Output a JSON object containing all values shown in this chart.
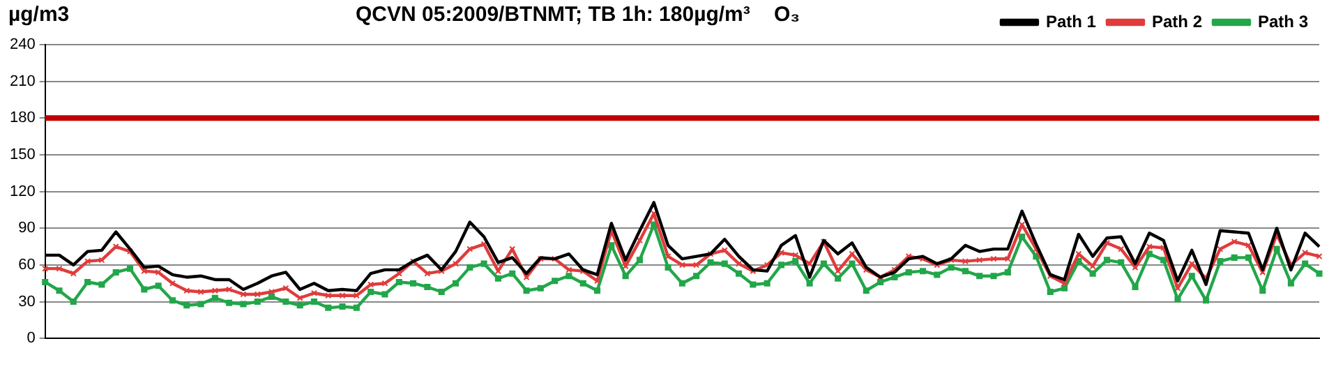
{
  "chart_data": {
    "type": "line",
    "title": "QCVN 05:2009/BTNMT; TB 1h: 180µg/m³",
    "ylabel": "µg/m3",
    "annotations": [
      "O₃"
    ],
    "categories": [
      null,
      null,
      null,
      null,
      null,
      null,
      null,
      null,
      null,
      null,
      null,
      null,
      null,
      null,
      null,
      null,
      null,
      null,
      null,
      null,
      null,
      null,
      null,
      null,
      null,
      null,
      null,
      null,
      null,
      null,
      null,
      null,
      null,
      null,
      null,
      null,
      null,
      null,
      null,
      null,
      null,
      null,
      null,
      null,
      null,
      null,
      null,
      null,
      null,
      null,
      null,
      null,
      null,
      null,
      null,
      null,
      null,
      null,
      null,
      null,
      null,
      null,
      null,
      null,
      null,
      null,
      null,
      null,
      null,
      null,
      null,
      null,
      null,
      null,
      null,
      null,
      null,
      null,
      null,
      null,
      null,
      null,
      null,
      null,
      null,
      null,
      null,
      null,
      null,
      null,
      null
    ],
    "series": [
      {
        "name": "Path 1",
        "color": "#000000",
        "marker": "none",
        "values": [
          68,
          68,
          60,
          71,
          72,
          87,
          73,
          58,
          59,
          52,
          50,
          51,
          48,
          48,
          40,
          45,
          51,
          54,
          40,
          45,
          39,
          40,
          39,
          53,
          56,
          56,
          63,
          68,
          56,
          71,
          95,
          83,
          62,
          66,
          53,
          66,
          65,
          69,
          56,
          52,
          94,
          64,
          88,
          111,
          76,
          65,
          67,
          69,
          81,
          67,
          56,
          55,
          76,
          84,
          50,
          80,
          69,
          78,
          58,
          50,
          54,
          65,
          67,
          61,
          65,
          76,
          71,
          73,
          73,
          104,
          77,
          52,
          48,
          85,
          67,
          82,
          83,
          61,
          86,
          80,
          47,
          72,
          44,
          88,
          87,
          86,
          56,
          90,
          56,
          86,
          75
        ]
      },
      {
        "name": "Path 2",
        "color": "#e03c3c",
        "marker": "cross",
        "values": [
          57,
          57,
          53,
          63,
          64,
          75,
          71,
          55,
          54,
          45,
          39,
          38,
          39,
          40,
          36,
          36,
          38,
          41,
          33,
          37,
          35,
          35,
          35,
          44,
          45,
          53,
          63,
          53,
          55,
          61,
          73,
          77,
          55,
          73,
          50,
          65,
          65,
          56,
          55,
          47,
          88,
          59,
          80,
          102,
          67,
          60,
          60,
          69,
          72,
          61,
          55,
          60,
          70,
          68,
          61,
          79,
          55,
          69,
          56,
          50,
          56,
          67,
          65,
          60,
          64,
          63,
          64,
          65,
          65,
          93,
          73,
          51,
          45,
          69,
          59,
          78,
          73,
          58,
          75,
          74,
          41,
          61,
          49,
          73,
          79,
          76,
          54,
          85,
          60,
          70,
          67
        ]
      },
      {
        "name": "Path 3",
        "color": "#22a64a",
        "marker": "square",
        "values": [
          46,
          39,
          30,
          46,
          44,
          54,
          57,
          40,
          43,
          31,
          27,
          28,
          33,
          29,
          28,
          30,
          34,
          30,
          27,
          30,
          25,
          26,
          25,
          38,
          36,
          46,
          45,
          42,
          38,
          45,
          58,
          61,
          49,
          53,
          39,
          41,
          47,
          51,
          45,
          39,
          76,
          51,
          64,
          93,
          58,
          45,
          51,
          62,
          61,
          53,
          44,
          45,
          60,
          63,
          45,
          61,
          49,
          61,
          39,
          46,
          50,
          54,
          55,
          52,
          58,
          55,
          51,
          51,
          54,
          83,
          67,
          38,
          41,
          63,
          53,
          64,
          62,
          42,
          69,
          64,
          32,
          51,
          31,
          63,
          66,
          66,
          39,
          73,
          45,
          61,
          53
        ]
      }
    ],
    "ylim": [
      0,
      240
    ],
    "yticks": [
      0,
      30,
      60,
      90,
      120,
      150,
      180,
      210,
      240
    ],
    "grid": "y",
    "legend": "top right",
    "ref_lines": [
      {
        "axis": "y",
        "value": 180,
        "color": "#c00000"
      }
    ]
  }
}
